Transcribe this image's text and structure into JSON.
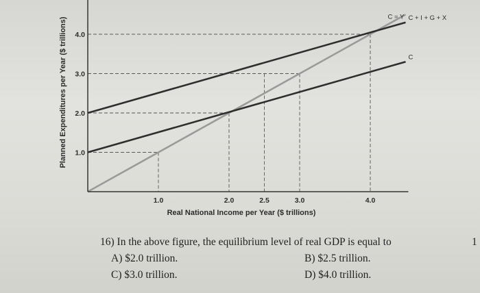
{
  "chart_data": {
    "type": "line",
    "xlabel": "Real National Income per Year ($ trillions)",
    "ylabel": "Planned Expenditures per Year ($ trillions)",
    "xlim": [
      0,
      4.5
    ],
    "ylim": [
      0,
      4.5
    ],
    "x_ticks": [
      {
        "value": 1.0,
        "label": "1.0"
      },
      {
        "value": 2.0,
        "label": "2.0"
      },
      {
        "value": 2.5,
        "label": "2.5"
      },
      {
        "value": 3.0,
        "label": "3.0"
      },
      {
        "value": 4.0,
        "label": "4.0"
      }
    ],
    "y_ticks": [
      {
        "value": 1.0,
        "label": "1.0"
      },
      {
        "value": 2.0,
        "label": "2.0"
      },
      {
        "value": 3.0,
        "label": "3.0"
      },
      {
        "value": 4.0,
        "label": "4.0"
      }
    ],
    "series": [
      {
        "name": "C = Y",
        "x": [
          0,
          4.5
        ],
        "y": [
          0,
          4.5
        ],
        "color": "#9a9a9a"
      },
      {
        "name": "C + I + G + X",
        "x": [
          0,
          4.5
        ],
        "y": [
          2.0,
          4.3
        ],
        "color": "#2e2e2e"
      },
      {
        "name": "C",
        "x": [
          0,
          4.5
        ],
        "y": [
          1.0,
          3.3
        ],
        "color": "#2e2e2e"
      }
    ],
    "guides": [
      {
        "x": 1.0,
        "y": 1.0
      },
      {
        "x": 2.0,
        "y": 2.0
      },
      {
        "x": 2.5,
        "y": 3.0
      },
      {
        "x": 3.0,
        "y": 3.0
      },
      {
        "x": 4.0,
        "y": 4.0
      }
    ],
    "grid": false
  },
  "question": {
    "stem": "16) In the above figure, the equilibrium level of real GDP is equal to",
    "options": [
      {
        "key": "A",
        "text": "A) $2.0 trillion."
      },
      {
        "key": "B",
        "text": "B) $2.5 trillion."
      },
      {
        "key": "C",
        "text": "C) $3.0 trillion."
      },
      {
        "key": "D",
        "text": "D) $4.0 trillion."
      }
    ]
  },
  "page_number": "1"
}
